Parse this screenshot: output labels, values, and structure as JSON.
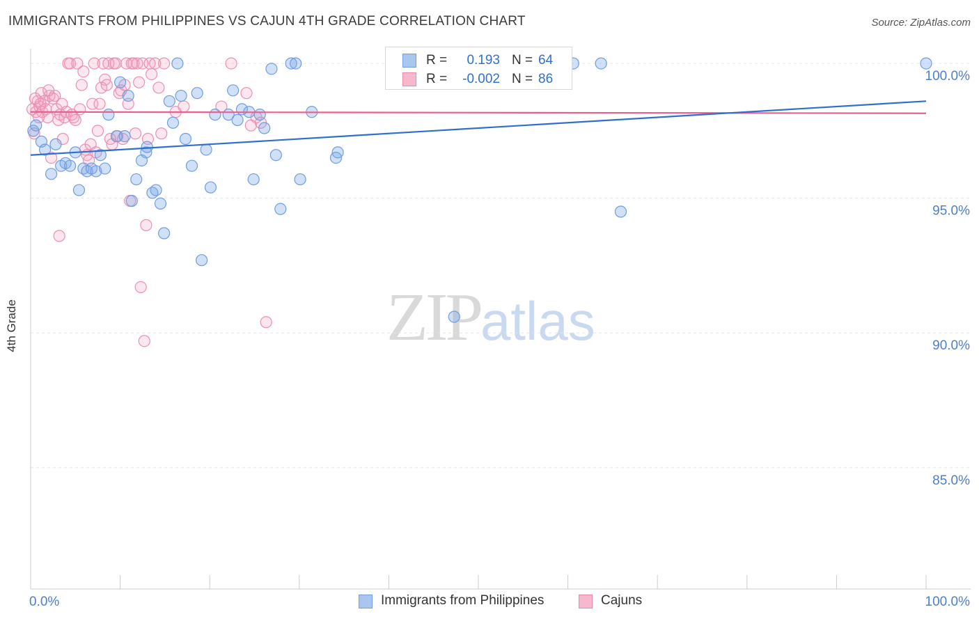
{
  "header": {
    "title": "IMMIGRANTS FROM PHILIPPINES VS CAJUN 4TH GRADE CORRELATION CHART",
    "source": "Source: ZipAtlas.com"
  },
  "watermark": {
    "zip": "ZIP",
    "atlas": "atlas"
  },
  "legend": {
    "rows": [
      {
        "r_label": "R =",
        "r_value": "0.193",
        "n_label": "N =",
        "n_value": "64",
        "swatch_fill": "#a9c6ef",
        "swatch_stroke": "#6f9de0",
        "value_color": "#2f6fce"
      },
      {
        "r_label": "R =",
        "r_value": "-0.002",
        "n_label": "N =",
        "n_value": "86",
        "swatch_fill": "#f6b8cd",
        "swatch_stroke": "#e88aaa",
        "value_color": "#2f6fce"
      }
    ]
  },
  "bottom_legend": [
    {
      "label": "Immigrants from Philippines",
      "swatch_fill": "#a9c6ef",
      "swatch_stroke": "#6f9de0"
    },
    {
      "label": "Cajuns",
      "swatch_fill": "#f6b8cd",
      "swatch_stroke": "#e88aaa"
    }
  ],
  "colors": {
    "blue_fill": "rgba(120,165,230,0.35)",
    "blue_stroke": "#6f9de0",
    "blue_line": "#2f6fce",
    "pink_fill": "rgba(245,160,190,0.25)",
    "pink_stroke": "#eb8fb0",
    "pink_line": "#e8608e",
    "grid": "#e6e6e6",
    "tick_label": "#4a7fd0",
    "axis": "#cccccc"
  },
  "chart_data": {
    "type": "scatter",
    "title": "IMMIGRANTS FROM PHILIPPINES VS CAJUN 4TH GRADE CORRELATION CHART",
    "xlabel": "",
    "ylabel": "4th Grade",
    "xlim": [
      0,
      100
    ],
    "ylim": [
      80.5,
      100.7
    ],
    "x_tick_labels": [
      "0.0%",
      "100.0%"
    ],
    "y_ticks": [
      100,
      95,
      90,
      85
    ],
    "y_tick_labels": [
      "100.0%",
      "95.0%",
      "90.0%",
      "85.0%"
    ],
    "grid": true,
    "legend_position": "top-center",
    "series": [
      {
        "name": "Immigrants from Philippines",
        "r": 0.193,
        "n": 64,
        "trend": [
          [
            0,
            96.6
          ],
          [
            100,
            98.6
          ]
        ],
        "points": [
          [
            0.3,
            97.5
          ],
          [
            0.6,
            97.7
          ],
          [
            1.2,
            97.1
          ],
          [
            1.6,
            96.8
          ],
          [
            2.3,
            95.9
          ],
          [
            2.8,
            97.0
          ],
          [
            3.4,
            96.2
          ],
          [
            3.9,
            96.3
          ],
          [
            4.4,
            96.2
          ],
          [
            5.0,
            96.7
          ],
          [
            5.4,
            95.3
          ],
          [
            5.9,
            96.1
          ],
          [
            6.3,
            96.0
          ],
          [
            6.8,
            96.1
          ],
          [
            7.3,
            96.0
          ],
          [
            7.8,
            96.6
          ],
          [
            8.3,
            96.1
          ],
          [
            8.7,
            98.1
          ],
          [
            9.6,
            97.3
          ],
          [
            10.0,
            99.3
          ],
          [
            10.5,
            97.3
          ],
          [
            10.9,
            98.8
          ],
          [
            11.3,
            94.9
          ],
          [
            11.8,
            95.7
          ],
          [
            12.4,
            96.4
          ],
          [
            12.9,
            96.7
          ],
          [
            13.0,
            96.9
          ],
          [
            13.6,
            95.2
          ],
          [
            14.0,
            95.3
          ],
          [
            14.5,
            94.8
          ],
          [
            14.9,
            93.7
          ],
          [
            15.5,
            98.6
          ],
          [
            15.9,
            97.8
          ],
          [
            16.4,
            100.0
          ],
          [
            16.8,
            98.8
          ],
          [
            17.3,
            97.2
          ],
          [
            18.0,
            96.2
          ],
          [
            18.6,
            98.9
          ],
          [
            19.1,
            92.7
          ],
          [
            19.6,
            96.8
          ],
          [
            20.1,
            95.4
          ],
          [
            20.6,
            98.1
          ],
          [
            22.1,
            98.1
          ],
          [
            22.6,
            99.0
          ],
          [
            23.1,
            97.9
          ],
          [
            23.6,
            98.3
          ],
          [
            24.4,
            98.2
          ],
          [
            24.9,
            95.7
          ],
          [
            25.6,
            98.1
          ],
          [
            26.1,
            97.6
          ],
          [
            26.9,
            99.8
          ],
          [
            27.4,
            96.6
          ],
          [
            27.9,
            94.6
          ],
          [
            29.1,
            100.0
          ],
          [
            29.6,
            100.0
          ],
          [
            30.1,
            95.7
          ],
          [
            31.4,
            98.2
          ],
          [
            34.1,
            96.5
          ],
          [
            34.3,
            96.7
          ],
          [
            47.3,
            90.6
          ],
          [
            60.6,
            100.0
          ],
          [
            63.7,
            100.0
          ],
          [
            65.9,
            94.5
          ],
          [
            100.0,
            100.0
          ]
        ]
      },
      {
        "name": "Cajuns",
        "r": -0.002,
        "n": 86,
        "trend": [
          [
            0,
            98.2
          ],
          [
            100,
            98.15
          ]
        ],
        "points": [
          [
            0.2,
            98.3
          ],
          [
            0.4,
            97.4
          ],
          [
            0.6,
            98.2
          ],
          [
            0.8,
            98.6
          ],
          [
            1.0,
            98.4
          ],
          [
            1.2,
            98.9
          ],
          [
            1.3,
            98.2
          ],
          [
            1.5,
            98.6
          ],
          [
            1.7,
            98.3
          ],
          [
            1.9,
            98.0
          ],
          [
            2.1,
            98.8
          ],
          [
            2.3,
            96.5
          ],
          [
            2.5,
            98.7
          ],
          [
            2.7,
            98.8
          ],
          [
            2.9,
            98.3
          ],
          [
            3.1,
            97.9
          ],
          [
            3.3,
            98.1
          ],
          [
            3.5,
            98.5
          ],
          [
            3.6,
            97.2
          ],
          [
            3.8,
            98.0
          ],
          [
            4.0,
            98.2
          ],
          [
            4.2,
            100.0
          ],
          [
            4.4,
            100.0
          ],
          [
            4.6,
            98.1
          ],
          [
            4.8,
            98.0
          ],
          [
            5.0,
            97.9
          ],
          [
            5.2,
            100.0
          ],
          [
            5.5,
            98.3
          ],
          [
            5.7,
            99.2
          ],
          [
            5.9,
            99.7
          ],
          [
            6.1,
            96.8
          ],
          [
            6.3,
            96.6
          ],
          [
            6.5,
            96.4
          ],
          [
            6.7,
            97.0
          ],
          [
            6.9,
            98.5
          ],
          [
            7.1,
            100.0
          ],
          [
            7.3,
            96.7
          ],
          [
            7.5,
            97.5
          ],
          [
            7.7,
            98.5
          ],
          [
            7.9,
            99.1
          ],
          [
            8.1,
            100.0
          ],
          [
            8.3,
            99.4
          ],
          [
            8.5,
            99.2
          ],
          [
            8.7,
            100.0
          ],
          [
            8.9,
            97.2
          ],
          [
            9.1,
            97.0
          ],
          [
            9.3,
            100.0
          ],
          [
            9.5,
            100.0
          ],
          [
            9.7,
            97.3
          ],
          [
            9.9,
            98.9
          ],
          [
            10.1,
            99.0
          ],
          [
            10.3,
            97.2
          ],
          [
            10.5,
            99.2
          ],
          [
            10.7,
            100.0
          ],
          [
            10.9,
            98.5
          ],
          [
            11.1,
            94.9
          ],
          [
            11.3,
            100.0
          ],
          [
            11.5,
            100.0
          ],
          [
            11.7,
            97.4
          ],
          [
            11.9,
            100.0
          ],
          [
            12.1,
            99.3
          ],
          [
            12.3,
            91.7
          ],
          [
            12.5,
            100.0
          ],
          [
            12.7,
            89.7
          ],
          [
            12.9,
            94.0
          ],
          [
            13.1,
            97.2
          ],
          [
            13.3,
            100.0
          ],
          [
            13.5,
            99.6
          ],
          [
            13.9,
            100.0
          ],
          [
            14.3,
            99.1
          ],
          [
            14.6,
            97.4
          ],
          [
            14.9,
            100.0
          ],
          [
            16.2,
            98.2
          ],
          [
            17.1,
            98.4
          ],
          [
            21.3,
            98.4
          ],
          [
            22.4,
            100.0
          ],
          [
            24.1,
            98.9
          ],
          [
            24.6,
            97.7
          ],
          [
            25.2,
            98.0
          ],
          [
            25.7,
            97.8
          ],
          [
            26.3,
            90.4
          ],
          [
            3.2,
            93.6
          ],
          [
            2.0,
            99.0
          ],
          [
            1.1,
            98.5
          ],
          [
            0.9,
            98.0
          ],
          [
            0.5,
            98.7
          ]
        ]
      }
    ]
  }
}
